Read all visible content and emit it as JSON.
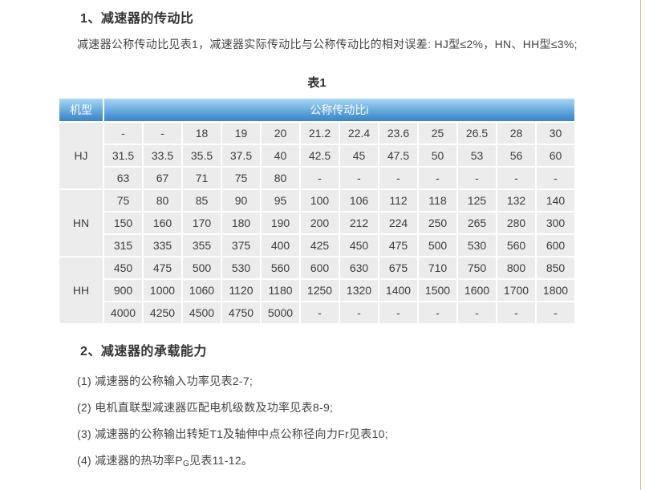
{
  "section1": {
    "heading": "1、减速器的传动比",
    "paragraph": "减速器公称传动比见表1，减速器实际传动比与公称传动比的相对误差: HJ型≤2%，HN、HH型≤3%;"
  },
  "table": {
    "caption": "表1",
    "header": {
      "model_col": "机型",
      "ratio_col": "公称传动比i"
    },
    "groups": [
      {
        "model": "HJ",
        "rows": [
          [
            "-",
            "-",
            "18",
            "19",
            "20",
            "21.2",
            "22.4",
            "23.6",
            "25",
            "26.5",
            "28",
            "30"
          ],
          [
            "31.5",
            "33.5",
            "35.5",
            "37.5",
            "40",
            "42.5",
            "45",
            "47.5",
            "50",
            "53",
            "56",
            "60"
          ],
          [
            "63",
            "67",
            "71",
            "75",
            "80",
            "-",
            "-",
            "-",
            "-",
            "-",
            "-",
            "-"
          ]
        ]
      },
      {
        "model": "HN",
        "rows": [
          [
            "75",
            "80",
            "85",
            "90",
            "95",
            "100",
            "106",
            "112",
            "118",
            "125",
            "132",
            "140"
          ],
          [
            "150",
            "160",
            "170",
            "180",
            "190",
            "200",
            "212",
            "224",
            "250",
            "265",
            "280",
            "300"
          ],
          [
            "315",
            "335",
            "355",
            "375",
            "400",
            "425",
            "450",
            "475",
            "500",
            "530",
            "560",
            "600"
          ]
        ]
      },
      {
        "model": "HH",
        "rows": [
          [
            "450",
            "475",
            "500",
            "530",
            "560",
            "600",
            "630",
            "675",
            "710",
            "750",
            "800",
            "850"
          ],
          [
            "900",
            "1000",
            "1060",
            "1120",
            "1180",
            "1250",
            "1320",
            "1400",
            "1500",
            "1600",
            "1700",
            "1800"
          ],
          [
            "4000",
            "4250",
            "4500",
            "4750",
            "5000",
            "-",
            "-",
            "-",
            "-",
            "-",
            "-",
            "-"
          ]
        ]
      }
    ]
  },
  "section2": {
    "heading": "2、减速器的承载能力",
    "items": [
      {
        "pre": "(1) 减速器的公称输入功率见表2-7;",
        "sub": "",
        "post": ""
      },
      {
        "pre": "(2) 电机直联型减速器匹配电机级数及功率见表8-9;",
        "sub": "",
        "post": ""
      },
      {
        "pre": "(3) 减速器的公称输出转矩T1及轴伸中点公称径向力Fr见表10;",
        "sub": "",
        "post": ""
      },
      {
        "pre": "(4) 减速器的热功率P",
        "sub": "G",
        "post": "见表11-12。"
      }
    ]
  },
  "colors": {
    "header_gradient_top": "#a9d6f2",
    "header_gradient_bottom": "#3e85c6",
    "cell_background": "#ececec",
    "page_right_border": "#cfc096",
    "text": "#3c3c3c"
  }
}
